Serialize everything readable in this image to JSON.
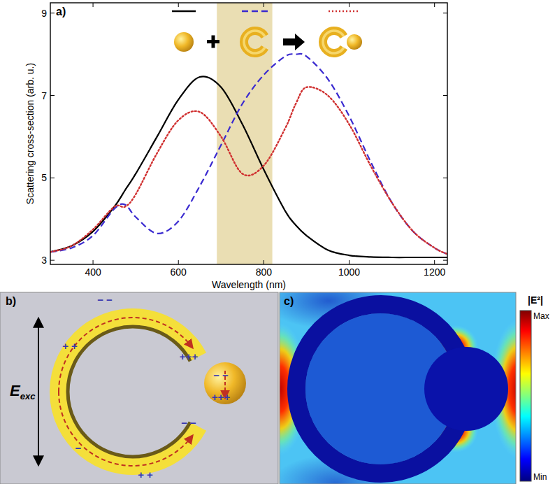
{
  "chart_data": {
    "type": "line",
    "panel_label": "a)",
    "x_label": "Wavelength (nm)",
    "y_label": "Scattering cross-section (arb. u.)",
    "x": [
      300,
      350,
      400,
      450,
      475,
      500,
      550,
      600,
      650,
      700,
      750,
      800,
      850,
      875,
      900,
      950,
      1000,
      1050,
      1100,
      1150,
      1200,
      1230
    ],
    "series": [
      {
        "color": "#000000",
        "line_style": "solid",
        "values": [
          3.2,
          3.35,
          3.7,
          4.3,
          4.7,
          5.1,
          6.0,
          6.9,
          7.45,
          7.2,
          6.3,
          5.2,
          4.2,
          3.85,
          3.6,
          3.25,
          3.12,
          3.08,
          3.07,
          3.07,
          3.07,
          3.07
        ]
      },
      {
        "color": "#3a2ad0",
        "line_style": "dashed",
        "values": [
          3.2,
          3.3,
          3.6,
          4.25,
          4.35,
          4.05,
          3.65,
          3.95,
          4.8,
          5.8,
          6.8,
          7.5,
          7.95,
          8.0,
          7.95,
          7.4,
          6.5,
          5.4,
          4.4,
          3.7,
          3.3,
          3.15
        ]
      },
      {
        "color": "#d03030",
        "line_style": "dotted",
        "values": [
          3.2,
          3.35,
          3.75,
          4.3,
          4.3,
          4.6,
          5.6,
          6.4,
          6.6,
          6.0,
          5.1,
          5.3,
          6.2,
          6.8,
          7.2,
          7.0,
          6.3,
          5.3,
          4.4,
          3.7,
          3.3,
          3.15
        ]
      }
    ],
    "xlim": [
      300,
      1230
    ],
    "xticks": [
      400,
      600,
      800,
      1000,
      1200
    ],
    "ylim": [
      2.9,
      9.25
    ],
    "yticks": [
      3,
      5,
      7,
      9
    ],
    "band": [
      690,
      820
    ],
    "legend": "top",
    "grid": false
  },
  "diagram": {
    "panel_label": "b)",
    "field": {
      "symbol": "E",
      "subscript": "exc"
    },
    "charges": [
      "− −",
      "+ +",
      "+++",
      "− −",
      "+++",
      "− −",
      "−",
      "+ +"
    ]
  },
  "field_map": {
    "panel_label": "c)",
    "colorbar": {
      "title": "|E²|",
      "max_label": "Max",
      "min_label": "Min"
    }
  }
}
